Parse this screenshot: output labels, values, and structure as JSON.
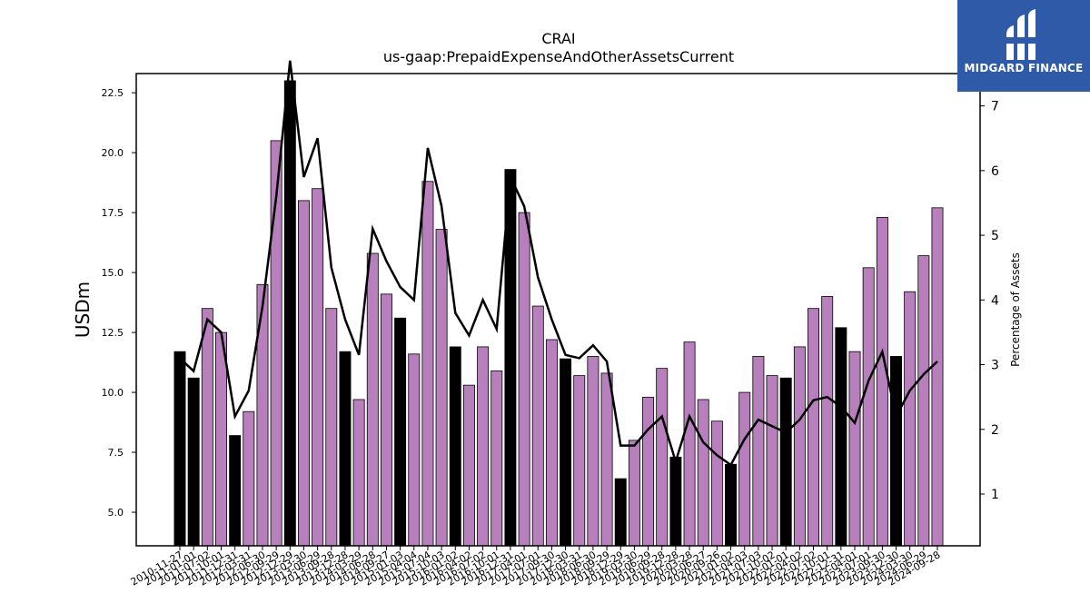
{
  "chart_data": {
    "type": "bar",
    "title": "CRAI",
    "subtitle": "us-gaap:PrepaidExpenseAndOtherAssetsCurrent",
    "ylabel": "USDm",
    "y2label": "Percentage of Assets",
    "ylim": [
      3.6,
      23.3
    ],
    "y2lim": [
      0.2,
      7.5
    ],
    "yticks": [
      5.0,
      7.5,
      10.0,
      12.5,
      15.0,
      17.5,
      20.0,
      22.5
    ],
    "y2ticks": [
      1,
      2,
      3,
      4,
      5,
      6,
      7
    ],
    "colors": {
      "bar_default": "#b87fbd",
      "bar_highlight": "#000000",
      "line": "#000000"
    },
    "categories": [
      "2010-11-27",
      "2011-01-01",
      "2011-07-02",
      "2011-10-01",
      "2011-12-31",
      "2012-03-31",
      "2012-06-30",
      "2012-09-29",
      "2012-12-29",
      "2013-03-30",
      "2013-06-29",
      "2013-09-28",
      "2013-12-28",
      "2014-03-29",
      "2014-06-28",
      "2014-09-27",
      "2015-01-03",
      "2015-04-04",
      "2015-07-04",
      "2015-10-03",
      "2016-01-02",
      "2016-04-02",
      "2016-07-02",
      "2016-10-01",
      "2016-12-31",
      "2017-04-01",
      "2017-07-01",
      "2017-09-30",
      "2017-12-30",
      "2018-03-31",
      "2018-06-30",
      "2018-09-29",
      "2018-12-29",
      "2019-03-30",
      "2019-06-29",
      "2019-09-28",
      "2019-12-28",
      "2020-03-28",
      "2020-06-27",
      "2020-09-26",
      "2021-01-02",
      "2021-04-03",
      "2021-07-03",
      "2021-10-02",
      "2022-01-01",
      "2022-04-02",
      "2022-07-02",
      "2022-10-01",
      "2022-12-31",
      "2023-04-01",
      "2023-07-01",
      "2023-09-30",
      "2023-12-30",
      "2024-03-30",
      "2024-06-29",
      "2024-09-28"
    ],
    "xtick_labels": [
      "2010-11-27",
      "2011-01-01",
      "2011-07-02",
      "2011-10-01",
      "2011-12-31",
      "2012-03-31",
      "2012-06-30",
      "2012-09-29",
      "2012-12-29",
      "2013-03-30",
      "2013-06-29",
      "2013-09-28",
      "2013-12-28",
      "2014-03-29",
      "2014-06-28",
      "2014-09-27",
      "2015-01-03",
      "2015-04-04",
      "2015-07-04",
      "2015-10-03",
      "2016-01-02",
      "2016-04-02",
      "2016-07-02",
      "2016-10-01",
      "2016-12-31",
      "2017-04-01",
      "2017-07-01",
      "2017-09-30",
      "2017-12-30",
      "2018-03-31",
      "2018-06-30",
      "2018-09-29",
      "2018-12-29",
      "2019-03-30",
      "2019-06-29",
      "2019-09-28",
      "2019-12-28",
      "2020-03-28",
      "2020-06-27",
      "2020-09-26",
      "2021-01-02",
      "2021-04-03",
      "2021-07-03",
      "2021-10-02",
      "2022-01-01",
      "2022-04-02",
      "2022-07-02",
      "2022-10-01",
      "2022-12-31",
      "2023-04-01",
      "2023-07-01",
      "2023-09-30",
      "2023-12-30",
      "2024-03-30",
      "2024-06-29",
      "2024-09-28"
    ],
    "series": [
      {
        "type": "bar",
        "axis": "left",
        "values": [
          11.7,
          10.6,
          13.5,
          12.5,
          8.2,
          9.2,
          14.5,
          20.5,
          23.0,
          18.0,
          18.5,
          13.5,
          11.7,
          9.7,
          15.8,
          14.1,
          13.1,
          11.6,
          18.8,
          16.8,
          11.9,
          10.3,
          11.9,
          10.9,
          19.3,
          17.5,
          13.6,
          12.2,
          11.4,
          10.7,
          11.5,
          10.8,
          6.4,
          8.0,
          9.8,
          11.0,
          7.3,
          12.1,
          9.7,
          8.8,
          7.0,
          10.0,
          11.5,
          10.7,
          10.6,
          11.9,
          13.5,
          14.0,
          12.7,
          11.7,
          15.2,
          17.3,
          11.5,
          14.2,
          15.7,
          17.7
        ],
        "highlight": [
          true,
          true,
          false,
          false,
          true,
          false,
          false,
          false,
          true,
          false,
          false,
          false,
          true,
          false,
          false,
          false,
          true,
          false,
          false,
          false,
          true,
          false,
          false,
          false,
          true,
          false,
          false,
          false,
          true,
          false,
          false,
          false,
          true,
          false,
          false,
          false,
          true,
          false,
          false,
          false,
          true,
          false,
          false,
          false,
          true,
          false,
          false,
          false,
          true,
          false,
          false,
          false,
          true,
          false,
          false,
          false
        ]
      },
      {
        "type": "line",
        "axis": "right",
        "values": [
          3.1,
          2.9,
          3.7,
          3.5,
          2.2,
          2.6,
          3.9,
          5.6,
          7.7,
          5.9,
          6.5,
          4.5,
          3.7,
          3.15,
          5.1,
          4.6,
          4.2,
          4.0,
          6.35,
          5.45,
          3.8,
          3.45,
          4.0,
          3.55,
          5.9,
          5.45,
          4.35,
          3.7,
          3.15,
          3.1,
          3.3,
          3.05,
          1.75,
          1.75,
          2.0,
          2.2,
          1.5,
          2.2,
          1.8,
          1.6,
          1.45,
          1.85,
          2.15,
          2.05,
          1.95,
          2.15,
          2.45,
          2.5,
          2.35,
          2.1,
          2.75,
          3.2,
          2.2,
          2.6,
          2.85,
          3.05
        ]
      }
    ]
  },
  "logo": {
    "text": "MIDGARD FINANCE",
    "icon": "midgard-logo-icon"
  }
}
